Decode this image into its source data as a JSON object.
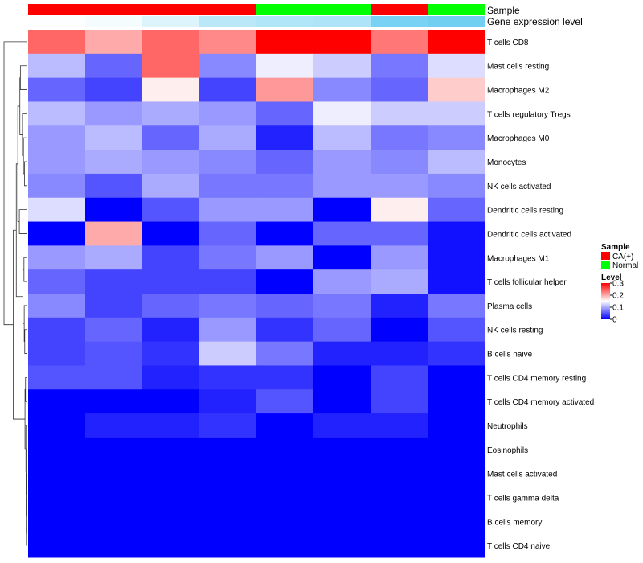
{
  "chart_data": {
    "type": "heatmap",
    "annotation_labels": {
      "sample": "Sample",
      "gene_expression": "Gene expression level"
    },
    "columns": [
      {
        "sample": "CA(+)",
        "gene_expression": 0.02
      },
      {
        "sample": "CA(+)",
        "gene_expression": 0.06
      },
      {
        "sample": "CA(+)",
        "gene_expression": 0.2
      },
      {
        "sample": "CA(+)",
        "gene_expression": 0.42
      },
      {
        "sample": "Normal",
        "gene_expression": 0.47
      },
      {
        "sample": "Normal",
        "gene_expression": 0.5
      },
      {
        "sample": "CA(+)",
        "gene_expression": 0.82
      },
      {
        "sample": "Normal",
        "gene_expression": 0.86
      }
    ],
    "rows": [
      "T cells CD8",
      "Mast cells resting",
      "Macrophages M2",
      "T cells regulatory  Tregs",
      "Macrophages M0",
      "Monocytes",
      "NK cells activated",
      "Dendritic cells resting",
      "Dendritic cells activated",
      "Macrophages M1",
      "T cells follicular helper",
      "Plasma cells",
      "NK cells resting",
      "B cells naive",
      "T cells CD4 memory resting",
      "T cells CD4 memory activated",
      "Neutrophils",
      "Eosinophils",
      "Mast cells activated",
      "T cells gamma delta",
      "B cells memory",
      "T cells CD4 naive"
    ],
    "values": [
      [
        0.24,
        0.2,
        0.24,
        0.22,
        0.3,
        0.3,
        0.23,
        0.3
      ],
      [
        0.11,
        0.06,
        0.24,
        0.08,
        0.14,
        0.12,
        0.07,
        0.13
      ],
      [
        0.06,
        0.04,
        0.16,
        0.04,
        0.21,
        0.08,
        0.06,
        0.18
      ],
      [
        0.11,
        0.09,
        0.1,
        0.09,
        0.06,
        0.14,
        0.12,
        0.12
      ],
      [
        0.09,
        0.11,
        0.06,
        0.1,
        0.02,
        0.11,
        0.07,
        0.08
      ],
      [
        0.09,
        0.1,
        0.09,
        0.08,
        0.06,
        0.09,
        0.08,
        0.11
      ],
      [
        0.08,
        0.05,
        0.1,
        0.07,
        0.07,
        0.09,
        0.09,
        0.08
      ],
      [
        0.13,
        0.0,
        0.05,
        0.09,
        0.09,
        0.0,
        0.16,
        0.06
      ],
      [
        0.0,
        0.2,
        0.0,
        0.06,
        0.0,
        0.06,
        0.06,
        0.01
      ],
      [
        0.09,
        0.1,
        0.04,
        0.07,
        0.09,
        0.0,
        0.09,
        0.01
      ],
      [
        0.06,
        0.04,
        0.04,
        0.04,
        0.0,
        0.09,
        0.1,
        0.01
      ],
      [
        0.08,
        0.04,
        0.06,
        0.07,
        0.06,
        0.07,
        0.02,
        0.07
      ],
      [
        0.04,
        0.06,
        0.02,
        0.09,
        0.03,
        0.06,
        0.0,
        0.05
      ],
      [
        0.04,
        0.05,
        0.03,
        0.12,
        0.07,
        0.02,
        0.02,
        0.03
      ],
      [
        0.05,
        0.05,
        0.02,
        0.03,
        0.03,
        0.0,
        0.04,
        0.0
      ],
      [
        0.0,
        0.0,
        0.0,
        0.02,
        0.05,
        0.0,
        0.04,
        0.0
      ],
      [
        0.0,
        0.02,
        0.02,
        0.03,
        0.0,
        0.02,
        0.02,
        0.0
      ],
      [
        0.0,
        0.0,
        0.0,
        0.0,
        0.0,
        0.0,
        0.0,
        0.0
      ],
      [
        0.0,
        0.0,
        0.0,
        0.0,
        0.0,
        0.0,
        0.0,
        0.0
      ],
      [
        0.0,
        0.0,
        0.0,
        0.0,
        0.0,
        0.0,
        0.0,
        0.0
      ],
      [
        0.0,
        0.0,
        0.0,
        0.0,
        0.0,
        0.0,
        0.0,
        0.0
      ],
      [
        0.0,
        0.0,
        0.0,
        0.0,
        0.0,
        0.0,
        0.0,
        0.0
      ]
    ],
    "color_scale": {
      "min": 0,
      "mid": 0.15,
      "max": 0.3,
      "low_color": "#0000ff",
      "mid_color": "#ffffff",
      "high_color": "#ff0000"
    },
    "gene_expression_colors": {
      "low": "#ffffff",
      "high": "#5ac8f0"
    },
    "legend": {
      "sample_title": "Sample",
      "sample_entries": [
        {
          "label": "CA(+)",
          "color": "#ff0000"
        },
        {
          "label": "Normal",
          "color": "#00ff00"
        }
      ],
      "level_title": "Level",
      "level_ticks": [
        "0.3",
        "0.2",
        "0.1",
        "0"
      ],
      "level_tick_values": [
        0.3,
        0.2,
        0.1,
        0
      ]
    },
    "dendrogram": {
      "merges": [
        [
          -21,
          -22,
          0.003
        ],
        [
          -20,
          1,
          0.005
        ],
        [
          -19,
          2,
          0.007
        ],
        [
          -18,
          3,
          0.009
        ],
        [
          -17,
          4,
          0.012
        ],
        [
          -15,
          -16,
          0.02
        ],
        [
          5,
          6,
          0.03
        ],
        [
          -13,
          -14,
          0.035
        ],
        [
          -12,
          8,
          0.045
        ],
        [
          -10,
          -11,
          0.05
        ],
        [
          9,
          10,
          0.07
        ],
        [
          -6,
          -7,
          0.04
        ],
        [
          -5,
          12,
          0.06
        ],
        [
          -4,
          13,
          0.08
        ],
        [
          -2,
          -3,
          0.12
        ],
        [
          14,
          15,
          0.13
        ],
        [
          -8,
          -9,
          0.14
        ],
        [
          16,
          17,
          0.17
        ],
        [
          11,
          18,
          0.2
        ],
        [
          7,
          19,
          0.26
        ],
        [
          -1,
          20,
          0.44
        ]
      ],
      "max_height": 0.44
    }
  }
}
